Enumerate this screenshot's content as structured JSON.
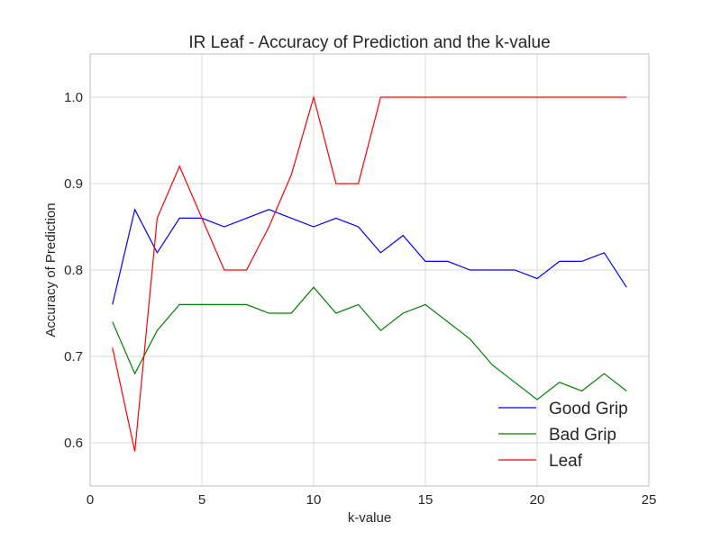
{
  "chart_data": {
    "type": "line",
    "title": "IR Leaf - Accuracy of Prediction and the k-value",
    "xlabel": "k-value",
    "ylabel": "Accuracy of Prediction",
    "xlim": [
      0,
      25
    ],
    "ylim": [
      0.55,
      1.05
    ],
    "xticks": [
      0,
      5,
      10,
      15,
      20,
      25
    ],
    "yticks": [
      0.6,
      0.7,
      0.8,
      0.9,
      1.0
    ],
    "xtick_labels": [
      "0",
      "5",
      "10",
      "15",
      "20",
      "25"
    ],
    "ytick_labels": [
      "0.6",
      "0.7",
      "0.8",
      "0.9",
      "1.0"
    ],
    "grid": true,
    "legend_position": "lower-right",
    "x": [
      1,
      2,
      3,
      4,
      5,
      6,
      7,
      8,
      9,
      10,
      11,
      12,
      13,
      14,
      15,
      16,
      17,
      18,
      19,
      20,
      21,
      22,
      23,
      24
    ],
    "series": [
      {
        "name": "Good Grip",
        "color": "#0000ff",
        "values": [
          0.76,
          0.87,
          0.82,
          0.86,
          0.86,
          0.85,
          0.86,
          0.87,
          0.86,
          0.85,
          0.86,
          0.85,
          0.82,
          0.84,
          0.81,
          0.81,
          0.8,
          0.8,
          0.8,
          0.79,
          0.81,
          0.81,
          0.82,
          0.78
        ]
      },
      {
        "name": "Bad Grip",
        "color": "#008000",
        "values": [
          0.74,
          0.68,
          0.73,
          0.76,
          0.76,
          0.76,
          0.76,
          0.75,
          0.75,
          0.78,
          0.75,
          0.76,
          0.73,
          0.75,
          0.76,
          0.74,
          0.72,
          0.69,
          0.67,
          0.65,
          0.67,
          0.66,
          0.68,
          0.66
        ]
      },
      {
        "name": "Leaf",
        "color": "#ff0000",
        "values": [
          0.71,
          0.59,
          0.86,
          0.92,
          0.86,
          0.8,
          0.8,
          0.85,
          0.91,
          1.0,
          0.9,
          0.9,
          1.0,
          1.0,
          1.0,
          1.0,
          1.0,
          1.0,
          1.0,
          1.0,
          1.0,
          1.0,
          1.0,
          1.0
        ]
      }
    ]
  }
}
